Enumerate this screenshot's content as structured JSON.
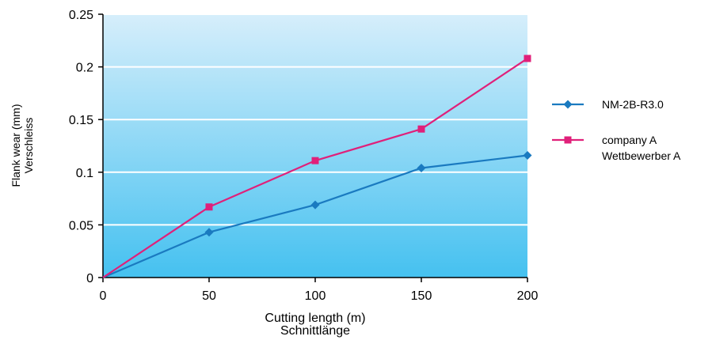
{
  "chart_data": {
    "type": "line",
    "title": "",
    "x": [
      0,
      50,
      100,
      150,
      200
    ],
    "xlim": [
      0,
      200
    ],
    "ylim": [
      0,
      0.25
    ],
    "xticks": [
      "0",
      "50",
      "100",
      "150",
      "200"
    ],
    "yticks": [
      "0",
      "0.05",
      "0.1",
      "0.15",
      "0.2",
      "0.25"
    ],
    "xlabel": [
      "Cutting length (m)",
      "Schnittlänge"
    ],
    "ylabel": [
      "Flank wear (mm)",
      "Verschleiss"
    ],
    "grid": "horizontal",
    "legend_position": "right",
    "background": {
      "top": "#d6eefb",
      "bottom": "#45c1f0"
    },
    "series": [
      {
        "name": [
          "NM-2B-R3.0"
        ],
        "marker": "diamond",
        "color": "#1a7ac0",
        "values": [
          0,
          0.043,
          0.069,
          0.104,
          0.116
        ]
      },
      {
        "name": [
          "company A",
          "Wettbewerber A"
        ],
        "marker": "square",
        "color": "#e0207a",
        "values": [
          0,
          0.067,
          0.111,
          0.141,
          0.208
        ]
      }
    ]
  }
}
